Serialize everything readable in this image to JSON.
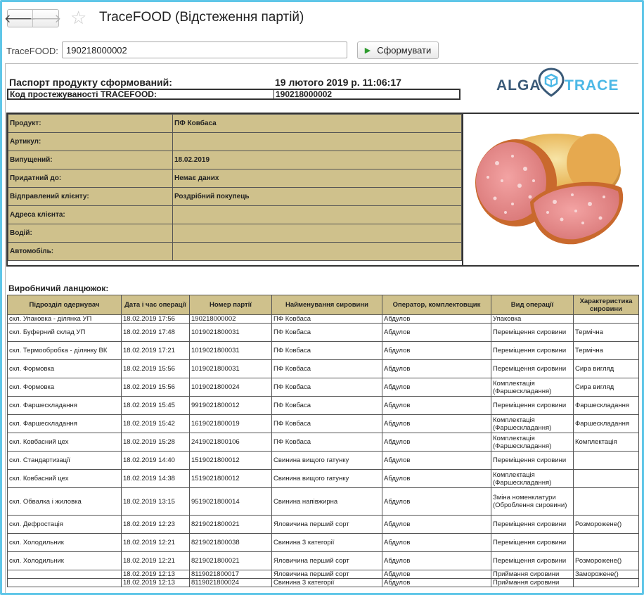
{
  "window": {
    "title": "TraceFOOD (Відстеження партій)",
    "back_icon": "arrow-left-icon",
    "forward_icon": "arrow-right-icon",
    "favorite_icon": "star-icon"
  },
  "search": {
    "label": "TraceFOOD:",
    "value": "190218000002",
    "button": "Сформувати"
  },
  "report": {
    "title": "Паспорт продукту сформований:",
    "date": "19 лютого 2019 р. 11:06:17",
    "code_label": "Код простежуваності TRACEFOOD:",
    "code_value": "190218000002",
    "logo_left": "ALGA",
    "logo_right": "TRACE",
    "info": [
      {
        "key": "Продукт:",
        "value": "ПФ Ковбаса"
      },
      {
        "key": "Артикул:",
        "value": ""
      },
      {
        "key": "Випущений:",
        "value": "18.02.2019"
      },
      {
        "key": "Придатний до:",
        "value": "Немає даних"
      },
      {
        "key": "Відправлений клієнту:",
        "value": "Роздрібний покупець"
      },
      {
        "key": "Адреса клієнта:",
        "value": ""
      },
      {
        "key": "Водій:",
        "value": ""
      },
      {
        "key": "Автомобіль:",
        "value": ""
      }
    ],
    "chain_title": "Виробничий ланцюжок:",
    "columns": [
      "Підрозділ одержувач",
      "Дата і час операції",
      "Номер партії",
      "Найменування сировини",
      "Оператор, комплектовщик",
      "Вид операції",
      "Характеристика сировини"
    ],
    "rows": [
      [
        "скл. Упаковка - ділянка УП",
        "18.02.2019 17:56",
        "190218000002",
        "ПФ Ковбаса",
        "Абдулов",
        "Упаковка",
        ""
      ],
      [
        "скл. Буферний склад УП",
        "18.02.2019 17:48",
        "1019021800031",
        "ПФ Ковбаса",
        "Абдулов",
        "Переміщення сировини",
        "Термічна"
      ],
      [
        "скл. Термообробка - ділянку ВК",
        "18.02.2019 17:21",
        "1019021800031",
        "ПФ Ковбаса",
        "Абдулов",
        "Переміщення сировини",
        "Термічна"
      ],
      [
        "скл. Формовка",
        "18.02.2019 15:56",
        "1019021800031",
        "ПФ Ковбаса",
        "Абдулов",
        "Переміщення сировини",
        "Сира вигляд"
      ],
      [
        "скл. Формовка",
        "18.02.2019 15:56",
        "1019021800024",
        "ПФ Ковбаса",
        "Абдулов",
        "Комплектація (Фаршескладання)",
        "Сира вигляд"
      ],
      [
        "скл. Фаршескладання",
        "18.02.2019 15:45",
        "9919021800012",
        "ПФ Ковбаса",
        "Абдулов",
        "Переміщення сировини",
        "Фаршескладання"
      ],
      [
        "скл. Фаршескладання",
        "18.02.2019 15:42",
        "1619021800019",
        "ПФ Ковбаса",
        "Абдулов",
        "Комплектація (Фаршескладання)",
        "Фаршескладання"
      ],
      [
        "скл. Ковбасний цех",
        "18.02.2019 15:28",
        "2419021800106",
        "ПФ Ковбаса",
        "Абдулов",
        "Комплектація (Фаршескладання)",
        "Комплектація"
      ],
      [
        "скл. Стандартизації",
        "18.02.2019 14:40",
        "1519021800012",
        "Свинина вищого гатунку",
        "Абдулов",
        "Переміщення сировини",
        ""
      ],
      [
        "скл. Ковбасний цех",
        "18.02.2019 14:38",
        "1519021800012",
        "Свинина вищого гатунку",
        "Абдулов",
        "Комплектація (Фаршескладання)",
        ""
      ],
      [
        "скл. Обвалка і жиловка",
        "18.02.2019 13:15",
        "9519021800014",
        "Свинина напівжирна",
        "Абдулов",
        "Зміна номенклатури (Оброблення сировини)",
        ""
      ],
      [
        "скл. Дефростація",
        "18.02.2019 12:23",
        "8219021800021",
        "Яловичина перший сорт",
        "Абдулов",
        "Переміщення сировини",
        "Розморожене()"
      ],
      [
        "скл. Холодильник",
        "18.02.2019 12:21",
        "8219021800038",
        "Свинина 3 категорії",
        "Абдулов",
        "Переміщення сировини",
        ""
      ],
      [
        "скл. Холодильник",
        "18.02.2019 12:21",
        "8219021800021",
        "Яловичина перший сорт",
        "Абдулов",
        "Переміщення сировини",
        "Розморожене()"
      ],
      [
        "",
        "18.02.2019 12:13",
        "8119021800017",
        "Яловичина перший сорт",
        "Абдулов",
        "Приймання сировини",
        "Заморожене()"
      ],
      [
        "",
        "18.02.2019 12:13",
        "8119021800024",
        "Свинина 3 категорії",
        "Абдулов",
        "Приймання сировини",
        ""
      ]
    ]
  }
}
